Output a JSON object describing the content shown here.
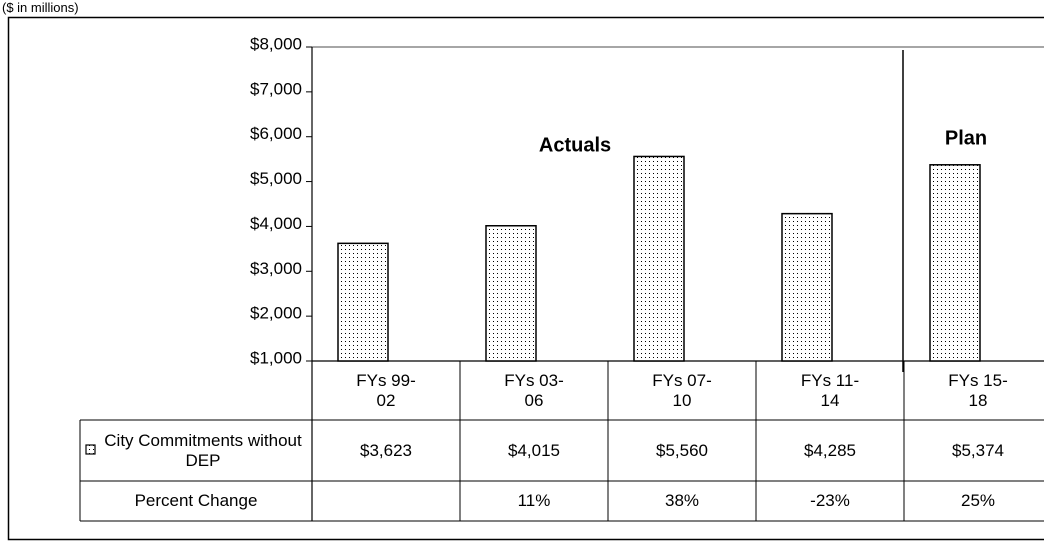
{
  "chart_data": {
    "type": "bar",
    "unit_note": "($ in millions)",
    "categories": [
      "FYs 99-02",
      "FYs 03-06",
      "FYs 07-10",
      "FYs 11-14",
      "FYs 15-18"
    ],
    "series": [
      {
        "name": "City Commitments without DEP",
        "values": [
          3623,
          4015,
          5560,
          4285,
          5374
        ],
        "value_labels": [
          "$3,623",
          "$4,015",
          "$5,560",
          "$4,285",
          "$5,374"
        ]
      }
    ],
    "percent_change": {
      "name": "Percent Change",
      "values": [
        null,
        11,
        38,
        -23,
        25
      ],
      "value_labels": [
        null,
        "11%",
        "38%",
        "-23%",
        "25%"
      ]
    },
    "annotations": [
      "Actuals",
      "Plan"
    ],
    "ylim": [
      1000,
      8000
    ],
    "yticks": [
      {
        "value": 1000,
        "label": "$1,000"
      },
      {
        "value": 2000,
        "label": "$2,000"
      },
      {
        "value": 3000,
        "label": "$3,000"
      },
      {
        "value": 4000,
        "label": "$4,000"
      },
      {
        "value": 5000,
        "label": "$5,000"
      },
      {
        "value": 6000,
        "label": "$6,000"
      },
      {
        "value": 7000,
        "label": "$7,000"
      },
      {
        "value": 8000,
        "label": "$8,000"
      }
    ],
    "grid": false
  }
}
